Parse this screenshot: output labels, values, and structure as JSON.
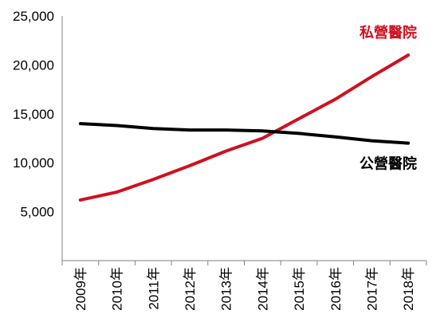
{
  "chart_data": {
    "type": "line",
    "x": [
      "2009年",
      "2010年",
      "2011年",
      "2012年",
      "2013年",
      "2014年",
      "2015年",
      "2016年",
      "2017年",
      "2018年"
    ],
    "ylim": [
      0,
      25000
    ],
    "yticks": [
      "5,000",
      "10,000",
      "15,000",
      "20,000",
      "25,000"
    ],
    "grid": false,
    "series": [
      {
        "name": "私營醫院",
        "color": "#d0101f",
        "values": [
          6200,
          7000,
          8300,
          9700,
          11200,
          12500,
          14500,
          16500,
          18800,
          21000
        ]
      },
      {
        "name": "公營醫院",
        "color": "#000000",
        "values": [
          14000,
          13800,
          13500,
          13350,
          13350,
          13250,
          13000,
          12650,
          12250,
          12000
        ]
      }
    ]
  }
}
